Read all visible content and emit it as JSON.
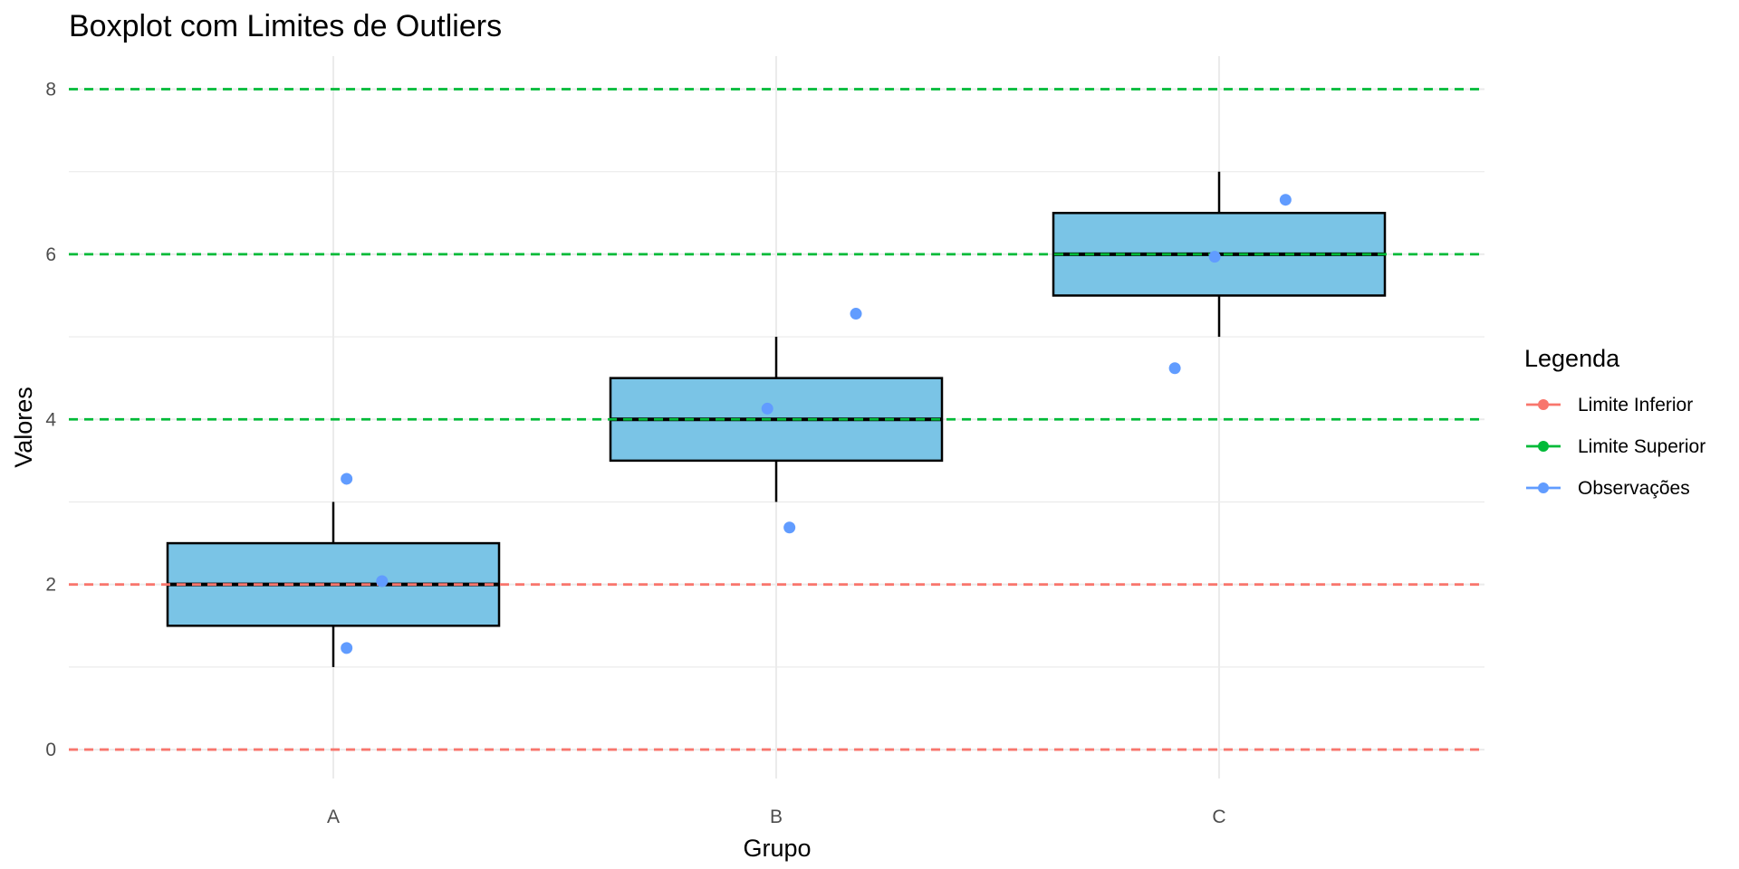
{
  "chart_data": {
    "type": "boxplot",
    "title": "Boxplot com Limites de Outliers",
    "xlabel": "Grupo",
    "ylabel": "Valores",
    "categories": [
      "A",
      "B",
      "C"
    ],
    "ylim": [
      -0.35,
      8.4
    ],
    "y_ticks": [
      0,
      2,
      4,
      6,
      8
    ],
    "y_tick_labels": [
      "0",
      "2",
      "4",
      "6",
      "8"
    ],
    "grid": true,
    "boxes": [
      {
        "category": "A",
        "min": 1,
        "q1": 1.5,
        "median": 2,
        "q3": 2.5,
        "max": 3
      },
      {
        "category": "B",
        "min": 3,
        "q1": 3.5,
        "median": 4,
        "q3": 4.5,
        "max": 5
      },
      {
        "category": "C",
        "min": 5,
        "q1": 5.5,
        "median": 6,
        "q3": 6.5,
        "max": 7
      }
    ],
    "observations": [
      {
        "category": "A",
        "offset": 0.03,
        "y": 3.28
      },
      {
        "category": "A",
        "offset": 0.11,
        "y": 2.04
      },
      {
        "category": "A",
        "offset": 0.03,
        "y": 1.23
      },
      {
        "category": "B",
        "offset": -0.02,
        "y": 4.13
      },
      {
        "category": "B",
        "offset": 0.18,
        "y": 5.28
      },
      {
        "category": "B",
        "offset": 0.03,
        "y": 2.69
      },
      {
        "category": "C",
        "offset": -0.01,
        "y": 5.97
      },
      {
        "category": "C",
        "offset": 0.15,
        "y": 6.66
      },
      {
        "category": "C",
        "offset": -0.1,
        "y": 4.62
      }
    ],
    "limits": {
      "inferior": [
        0,
        2
      ],
      "superior": [
        4,
        6,
        8
      ]
    },
    "legend": {
      "title": "Legenda",
      "position": "right",
      "items": [
        {
          "label": "Limite Inferior",
          "color": "#F8766D"
        },
        {
          "label": "Limite Superior",
          "color": "#00BA38"
        },
        {
          "label": "Observações",
          "color": "#619CFF"
        }
      ]
    },
    "colors": {
      "box_fill": "#7AC4E6",
      "box_stroke": "#000000",
      "grid": "#EBEBEB",
      "inferior": "#F8766D",
      "superior": "#00BA38",
      "observations": "#619CFF"
    }
  }
}
